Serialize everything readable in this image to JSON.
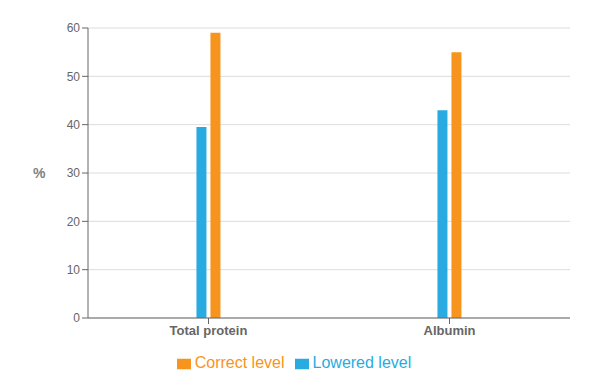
{
  "chart_data": {
    "type": "bar",
    "categories": [
      "Total protein",
      "Albumin"
    ],
    "series": [
      {
        "name": "Lowered level",
        "color": "#29ABE2",
        "values": [
          39.5,
          43.0
        ]
      },
      {
        "name": "Correct level",
        "color": "#F7941D",
        "values": [
          59.0,
          55.0
        ]
      }
    ],
    "ylabel": "%",
    "ylim": [
      0,
      60
    ],
    "yticks": [
      0,
      10,
      20,
      30,
      40,
      50,
      60
    ],
    "grid": true,
    "legend": "bottom"
  }
}
